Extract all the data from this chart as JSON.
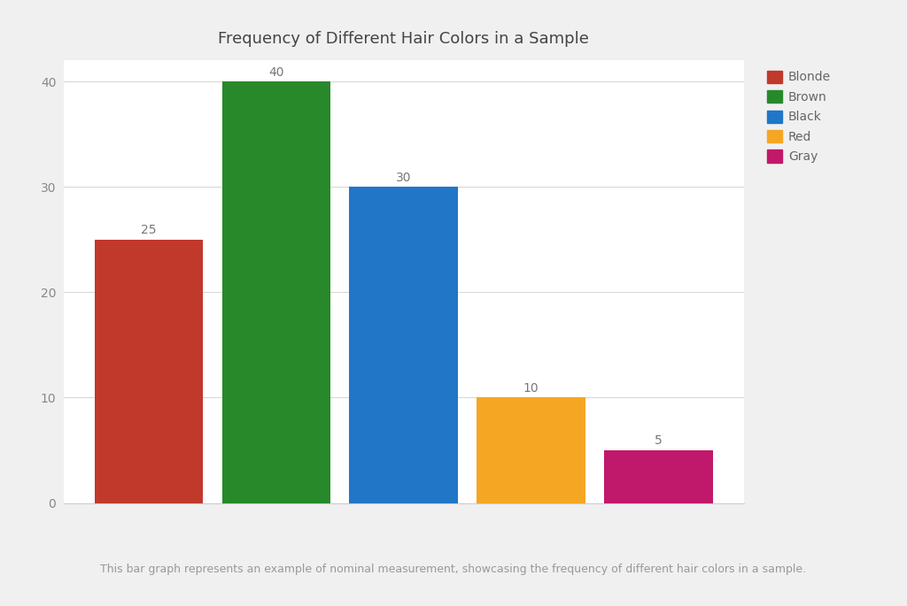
{
  "categories": [
    "Blonde",
    "Brown",
    "Black",
    "Red",
    "Gray"
  ],
  "values": [
    25,
    40,
    30,
    10,
    5
  ],
  "bar_colors": [
    "#c0392b",
    "#27892a",
    "#2176c7",
    "#f5a623",
    "#c0186a"
  ],
  "title": "Frequency of Different Hair Colors in a Sample",
  "ylim": [
    0,
    42
  ],
  "yticks": [
    0,
    10,
    20,
    30,
    40
  ],
  "figure_bg": "#f0f0f0",
  "plot_bg": "#ffffff",
  "grid_color": "#d8d8d8",
  "caption": "This bar graph represents an example of nominal measurement, showcasing the frequency of different hair colors in a sample.",
  "title_fontsize": 13,
  "label_fontsize": 10,
  "caption_fontsize": 9,
  "tick_fontsize": 10,
  "legend_labels": [
    "Blonde",
    "Brown",
    "Black",
    "Red",
    "Gray"
  ],
  "legend_colors": [
    "#c0392b",
    "#27892a",
    "#2176c7",
    "#f5a623",
    "#c0186a"
  ],
  "bar_width": 0.85,
  "value_label_color": "#777777"
}
